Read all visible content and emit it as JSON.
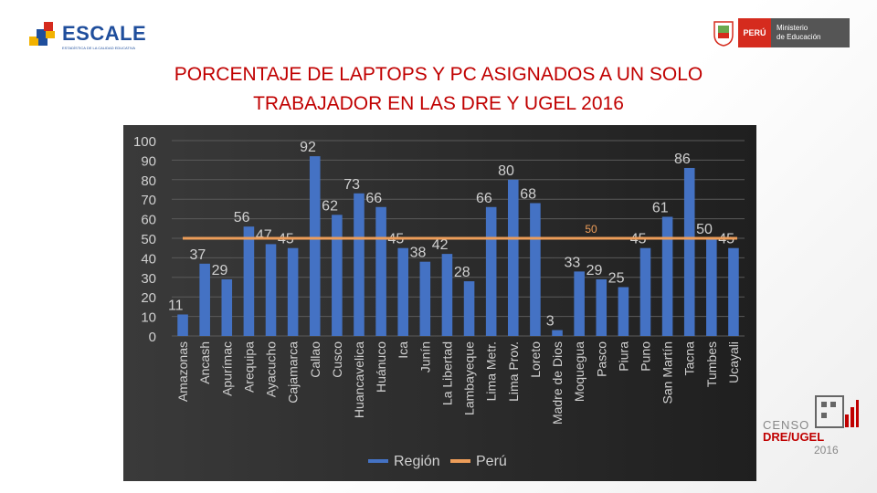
{
  "header": {
    "left_logo_text": "ESCALE",
    "left_logo_subtext": "ESTADÍSTICA DE LA CALIDAD EDUCATIVA",
    "right_logo_country": "PERÚ",
    "right_logo_ministry_line1": "Ministerio",
    "right_logo_ministry_line2": "de Educación"
  },
  "footer_logo": {
    "line1": "CENSO",
    "line2": "DRE/UGEL",
    "line3": "2016"
  },
  "colors": {
    "bar": "#4472c4",
    "line": "#ed9d59",
    "title": "#c00000",
    "grid": "#5a5a5a",
    "text": "#d0d0d0"
  },
  "chart_data": {
    "type": "bar",
    "title": "PORCENTAJE DE LAPTOPS Y PC ASIGNADOS A UN SOLO TRABAJADOR EN LAS DRE Y UGEL 2016",
    "title_lines": [
      "PORCENTAJE DE LAPTOPS Y PC ASIGNADOS A UN SOLO",
      "TRABAJADOR EN LAS DRE Y UGEL 2016"
    ],
    "categories": [
      "Amazonas",
      "Ancash",
      "Apurímac",
      "Arequipa",
      "Ayacucho",
      "Cajamarca",
      "Callao",
      "Cusco",
      "Huancavelica",
      "Huánuco",
      "Ica",
      "Junín",
      "La Libertad",
      "Lambayeque",
      "Lima Metr.",
      "Lima Prov.",
      "Loreto",
      "Madre de Dios",
      "Moquegua",
      "Pasco",
      "Piura",
      "Puno",
      "San Martín",
      "Tacna",
      "Tumbes",
      "Ucayali"
    ],
    "series": [
      {
        "name": "Región",
        "type": "bar",
        "values": [
          11,
          37,
          29,
          56,
          47,
          45,
          92,
          62,
          73,
          66,
          45,
          38,
          42,
          28,
          66,
          80,
          68,
          3,
          33,
          29,
          25,
          45,
          61,
          86,
          50,
          45
        ]
      },
      {
        "name": "Perú",
        "type": "line",
        "value": 50,
        "label": "50"
      }
    ],
    "yticks": [
      "100",
      "90",
      "80",
      "70",
      "60",
      "50",
      "40",
      "30",
      "20",
      "10",
      "0"
    ],
    "ylim": [
      0,
      100
    ],
    "grid": true,
    "legend": "bottom"
  }
}
